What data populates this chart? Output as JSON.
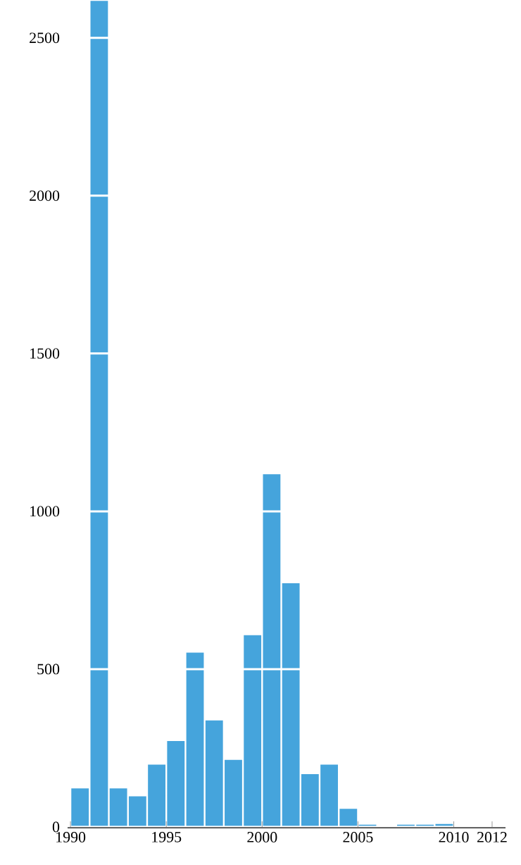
{
  "chart_data": {
    "type": "histogram",
    "bins": [
      1990,
      1991,
      1992,
      1993,
      1994,
      1995,
      1996,
      1997,
      1998,
      1999,
      2000,
      2001,
      2002,
      2003,
      2004,
      2005,
      2006,
      2007,
      2008,
      2009,
      2010
    ],
    "values": [
      125,
      2620,
      125,
      100,
      200,
      275,
      555,
      340,
      215,
      610,
      1120,
      775,
      170,
      200,
      60,
      10,
      0,
      10,
      10,
      12
    ],
    "color": "#45a4dc",
    "xlim": [
      1989.85,
      2012.7
    ],
    "xticks": [
      1990,
      1995,
      2000,
      2005,
      2010,
      2012
    ],
    "ylim": [
      0,
      2620
    ],
    "yticks": [
      0,
      500,
      1000,
      1500,
      2000,
      2500
    ],
    "grid": "y"
  }
}
